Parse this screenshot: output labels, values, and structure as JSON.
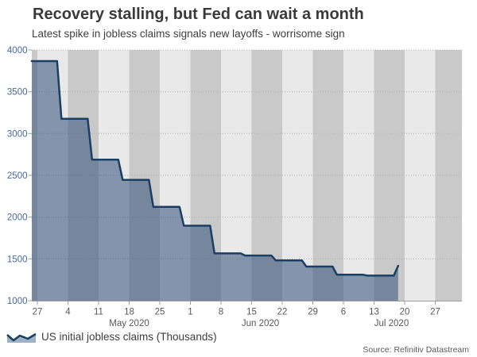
{
  "header": {
    "title": "Recovery stalling, but Fed can wait a month",
    "subtitle": "Latest spike in jobless claims signals new layoffs - worrisome sign"
  },
  "source": {
    "text": "Source: Refinitiv Datastream"
  },
  "chart_data": {
    "type": "area",
    "title": "Recovery stalling, but Fed can wait a month",
    "subtitle": "Latest spike in jobless claims signals new layoffs - worrisome sign",
    "series": [
      {
        "name": "US initial jobless claims (Thousands)",
        "dates": [
          "2020-04-25",
          "2020-05-02",
          "2020-05-09",
          "2020-05-16",
          "2020-05-23",
          "2020-05-30",
          "2020-06-06",
          "2020-06-13",
          "2020-06-20",
          "2020-06-27",
          "2020-07-04",
          "2020-07-11",
          "2020-07-18"
        ],
        "values": [
          3867,
          3176,
          2687,
          2446,
          2123,
          1897,
          1566,
          1540,
          1482,
          1408,
          1310,
          1300,
          1416
        ]
      }
    ],
    "ylim": [
      1000,
      4000
    ],
    "y_ticks": [
      {
        "value": 1000,
        "label": "1000"
      },
      {
        "value": 1500,
        "label": "1500"
      },
      {
        "value": 2000,
        "label": "2000"
      },
      {
        "value": 2500,
        "label": "2500"
      },
      {
        "value": 3000,
        "label": "3000"
      },
      {
        "value": 3500,
        "label": "3500"
      },
      {
        "value": 4000,
        "label": "4000"
      }
    ],
    "x_ticks": [
      {
        "label": "27",
        "date": "2020-04-27"
      },
      {
        "label": "4",
        "date": "2020-05-04"
      },
      {
        "label": "11",
        "date": "2020-05-11"
      },
      {
        "label": "18",
        "date": "2020-05-18"
      },
      {
        "label": "25",
        "date": "2020-05-25"
      },
      {
        "label": "1",
        "date": "2020-06-01"
      },
      {
        "label": "8",
        "date": "2020-06-08"
      },
      {
        "label": "15",
        "date": "2020-06-15"
      },
      {
        "label": "22",
        "date": "2020-06-22"
      },
      {
        "label": "29",
        "date": "2020-06-29"
      },
      {
        "label": "6",
        "date": "2020-07-06"
      },
      {
        "label": "13",
        "date": "2020-07-13"
      },
      {
        "label": "20",
        "date": "2020-07-20"
      },
      {
        "label": "27",
        "date": "2020-07-27"
      }
    ],
    "month_labels": [
      {
        "label": "May 2020",
        "center_date": "2020-05-18"
      },
      {
        "label": "Jun 2020",
        "center_date": "2020-06-17"
      },
      {
        "label": "Jul 2020",
        "center_date": "2020-07-17"
      }
    ],
    "grid": "horizontal-dotted",
    "background_bands": "weekly-alternating",
    "legend_position": "bottom-left",
    "colors": {
      "line": "#1a3f63",
      "fill": "rgba(47,78,120,0.55)",
      "legend_fill": "#9fb1c5",
      "band_light": "#e9e9e9",
      "band_dark": "#c9c9c9",
      "grid": "#b4b4b4",
      "axis": "#9c9c9c",
      "y_label": "#46699c",
      "x_label": "#575757",
      "title_text": "#3a3a3a"
    }
  }
}
